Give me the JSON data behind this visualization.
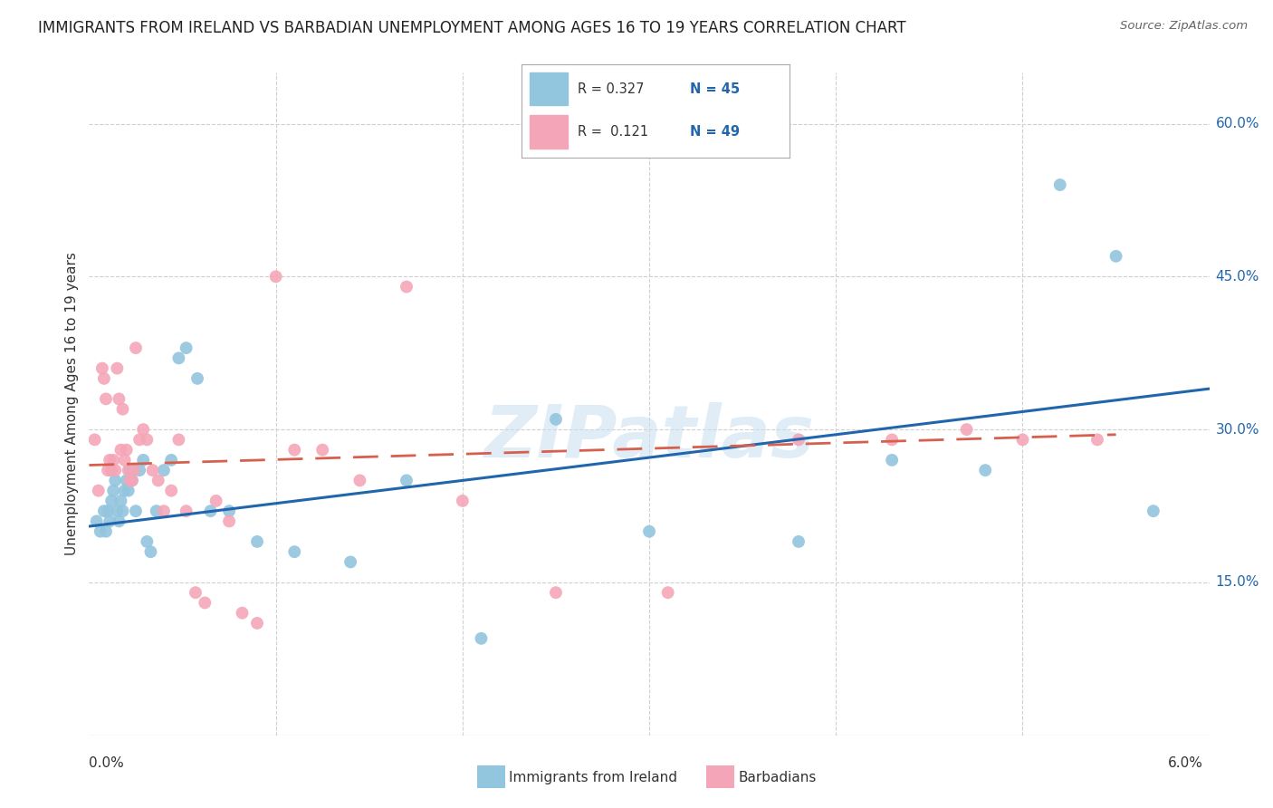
{
  "title": "IMMIGRANTS FROM IRELAND VS BARBADIAN UNEMPLOYMENT AMONG AGES 16 TO 19 YEARS CORRELATION CHART",
  "source": "Source: ZipAtlas.com",
  "ylabel": "Unemployment Among Ages 16 to 19 years",
  "xlim": [
    0.0,
    6.0
  ],
  "ylim": [
    0.0,
    65.0
  ],
  "yticks": [
    15.0,
    30.0,
    45.0,
    60.0
  ],
  "blue_color": "#92c5de",
  "pink_color": "#f4a6b8",
  "line_blue": "#2166ac",
  "line_pink": "#d6604d",
  "watermark_color": "#c8dff0",
  "blue_scatter_x": [
    0.04,
    0.06,
    0.08,
    0.09,
    0.1,
    0.11,
    0.12,
    0.13,
    0.14,
    0.15,
    0.16,
    0.17,
    0.18,
    0.19,
    0.2,
    0.21,
    0.22,
    0.23,
    0.24,
    0.25,
    0.27,
    0.29,
    0.31,
    0.33,
    0.36,
    0.4,
    0.44,
    0.48,
    0.52,
    0.58,
    0.65,
    0.75,
    0.9,
    1.1,
    1.4,
    1.7,
    2.1,
    2.5,
    3.0,
    3.8,
    4.3,
    4.8,
    5.2,
    5.5,
    5.7
  ],
  "blue_scatter_y": [
    21,
    20,
    22,
    20,
    22,
    21,
    23,
    24,
    25,
    22,
    21,
    23,
    22,
    24,
    25,
    24,
    26,
    25,
    26,
    22,
    26,
    27,
    19,
    18,
    22,
    26,
    27,
    37,
    38,
    35,
    22,
    22,
    19,
    18,
    17,
    25,
    9.5,
    31,
    20,
    19,
    27,
    26,
    54,
    47,
    22
  ],
  "pink_scatter_x": [
    0.03,
    0.05,
    0.07,
    0.08,
    0.09,
    0.1,
    0.11,
    0.12,
    0.13,
    0.14,
    0.15,
    0.16,
    0.17,
    0.18,
    0.19,
    0.2,
    0.21,
    0.22,
    0.23,
    0.24,
    0.25,
    0.27,
    0.29,
    0.31,
    0.34,
    0.37,
    0.4,
    0.44,
    0.48,
    0.52,
    0.57,
    0.62,
    0.68,
    0.75,
    0.82,
    0.9,
    1.0,
    1.1,
    1.25,
    1.45,
    1.7,
    2.0,
    2.5,
    3.1,
    3.8,
    4.3,
    4.7,
    5.0,
    5.4
  ],
  "pink_scatter_y": [
    29,
    24,
    36,
    35,
    33,
    26,
    27,
    26,
    27,
    26,
    36,
    33,
    28,
    32,
    27,
    28,
    26,
    25,
    25,
    26,
    38,
    29,
    30,
    29,
    26,
    25,
    22,
    24,
    29,
    22,
    14,
    13,
    23,
    21,
    12,
    11,
    45,
    28,
    28,
    25,
    44,
    23,
    14,
    14,
    29,
    29,
    30,
    29,
    29
  ],
  "blue_line_x": [
    0.0,
    6.0
  ],
  "blue_line_y": [
    20.5,
    34.0
  ],
  "pink_line_x": [
    0.0,
    5.5
  ],
  "pink_line_y": [
    26.5,
    29.5
  ],
  "background_color": "#ffffff",
  "grid_color": "#d0d0d0"
}
